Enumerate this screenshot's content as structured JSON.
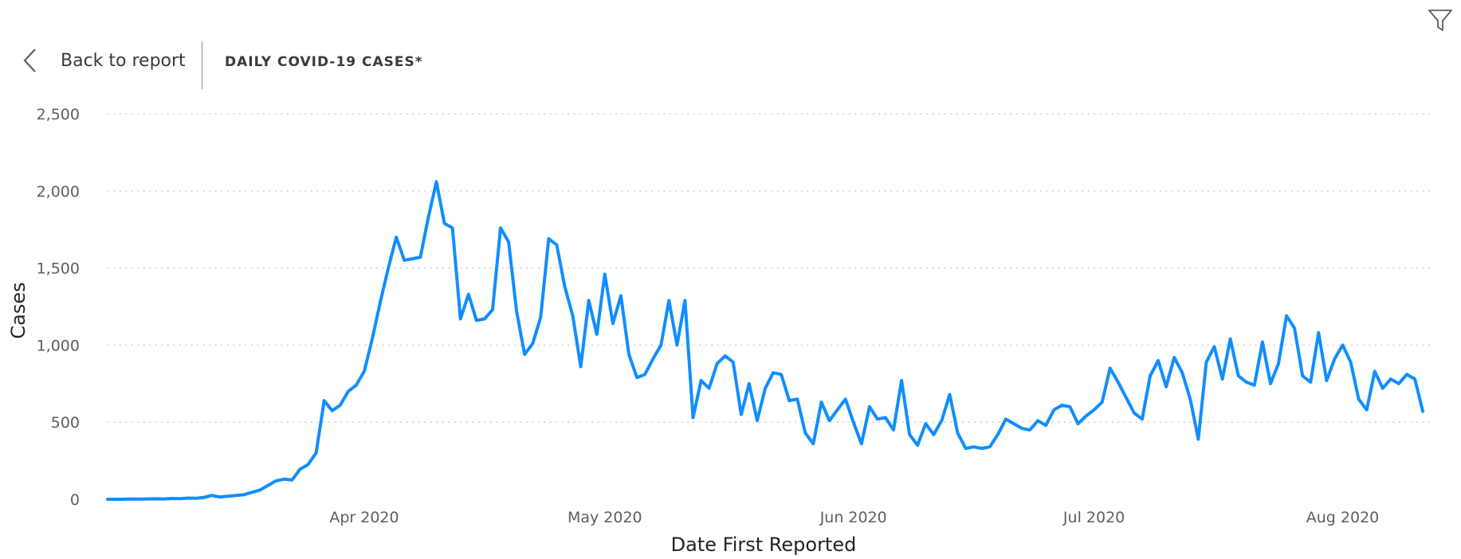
{
  "header": {
    "back_label": "Back to report",
    "title": "DAILY COVID-19 CASES*"
  },
  "icons": {
    "filter": "filter-icon",
    "back": "chevron-left-icon"
  },
  "colors": {
    "line": "#118DFF",
    "grid": "#c8c6c4"
  },
  "chart_data": {
    "type": "line",
    "title": "DAILY COVID-19 CASES*",
    "xlabel": "Date First Reported",
    "ylabel": "Cases",
    "ylim": [
      0,
      2500
    ],
    "yticks": [
      {
        "value": 0,
        "label": "0"
      },
      {
        "value": 500,
        "label": "500"
      },
      {
        "value": 1000,
        "label": "1,000"
      },
      {
        "value": 1500,
        "label": "1,500"
      },
      {
        "value": 2000,
        "label": "2,000"
      },
      {
        "value": 2500,
        "label": "2,500"
      }
    ],
    "xticks": [
      {
        "date": "2020-04-01",
        "label": "Apr 2020"
      },
      {
        "date": "2020-05-01",
        "label": "May 2020"
      },
      {
        "date": "2020-06-01",
        "label": "Jun 2020"
      },
      {
        "date": "2020-07-01",
        "label": "Jul 2020"
      },
      {
        "date": "2020-08-01",
        "label": "Aug 2020"
      }
    ],
    "xlim": [
      "2020-02-29",
      "2020-08-09"
    ],
    "grid": true,
    "series": [
      {
        "points": [
          [
            "2020-02-29",
            0
          ],
          [
            "2020-03-01",
            0
          ],
          [
            "2020-03-02",
            0
          ],
          [
            "2020-03-03",
            2
          ],
          [
            "2020-03-04",
            1
          ],
          [
            "2020-03-05",
            2
          ],
          [
            "2020-03-06",
            3
          ],
          [
            "2020-03-07",
            2
          ],
          [
            "2020-03-08",
            5
          ],
          [
            "2020-03-09",
            4
          ],
          [
            "2020-03-10",
            8
          ],
          [
            "2020-03-11",
            6
          ],
          [
            "2020-03-12",
            12
          ],
          [
            "2020-03-13",
            25
          ],
          [
            "2020-03-14",
            15
          ],
          [
            "2020-03-15",
            20
          ],
          [
            "2020-03-16",
            25
          ],
          [
            "2020-03-17",
            30
          ],
          [
            "2020-03-18",
            45
          ],
          [
            "2020-03-19",
            60
          ],
          [
            "2020-03-20",
            90
          ],
          [
            "2020-03-21",
            120
          ],
          [
            "2020-03-22",
            130
          ],
          [
            "2020-03-23",
            125
          ],
          [
            "2020-03-24",
            195
          ],
          [
            "2020-03-25",
            225
          ],
          [
            "2020-03-26",
            300
          ],
          [
            "2020-03-27",
            640
          ],
          [
            "2020-03-28",
            575
          ],
          [
            "2020-03-29",
            610
          ],
          [
            "2020-03-30",
            700
          ],
          [
            "2020-03-31",
            740
          ],
          [
            "2020-04-01",
            830
          ],
          [
            "2020-04-02",
            1040
          ],
          [
            "2020-04-03",
            1280
          ],
          [
            "2020-04-04",
            1500
          ],
          [
            "2020-04-05",
            1700
          ],
          [
            "2020-04-06",
            1550
          ],
          [
            "2020-04-07",
            1560
          ],
          [
            "2020-04-08",
            1570
          ],
          [
            "2020-04-09",
            1830
          ],
          [
            "2020-04-10",
            2060
          ],
          [
            "2020-04-11",
            1790
          ],
          [
            "2020-04-12",
            1760
          ],
          [
            "2020-04-13",
            1170
          ],
          [
            "2020-04-14",
            1330
          ],
          [
            "2020-04-15",
            1160
          ],
          [
            "2020-04-16",
            1170
          ],
          [
            "2020-04-17",
            1230
          ],
          [
            "2020-04-18",
            1760
          ],
          [
            "2020-04-19",
            1670
          ],
          [
            "2020-04-20",
            1220
          ],
          [
            "2020-04-21",
            940
          ],
          [
            "2020-04-22",
            1010
          ],
          [
            "2020-04-23",
            1180
          ],
          [
            "2020-04-24",
            1690
          ],
          [
            "2020-04-25",
            1650
          ],
          [
            "2020-04-26",
            1380
          ],
          [
            "2020-04-27",
            1190
          ],
          [
            "2020-04-28",
            860
          ],
          [
            "2020-04-29",
            1290
          ],
          [
            "2020-04-30",
            1070
          ],
          [
            "2020-05-01",
            1460
          ],
          [
            "2020-05-02",
            1140
          ],
          [
            "2020-05-03",
            1320
          ],
          [
            "2020-05-04",
            940
          ],
          [
            "2020-05-05",
            790
          ],
          [
            "2020-05-06",
            810
          ],
          [
            "2020-05-07",
            910
          ],
          [
            "2020-05-08",
            1000
          ],
          [
            "2020-05-09",
            1290
          ],
          [
            "2020-05-10",
            1000
          ],
          [
            "2020-05-11",
            1290
          ],
          [
            "2020-05-12",
            530
          ],
          [
            "2020-05-13",
            770
          ],
          [
            "2020-05-14",
            720
          ],
          [
            "2020-05-15",
            880
          ],
          [
            "2020-05-16",
            930
          ],
          [
            "2020-05-17",
            890
          ],
          [
            "2020-05-18",
            550
          ],
          [
            "2020-05-19",
            750
          ],
          [
            "2020-05-20",
            510
          ],
          [
            "2020-05-21",
            720
          ],
          [
            "2020-05-22",
            820
          ],
          [
            "2020-05-23",
            810
          ],
          [
            "2020-05-24",
            640
          ],
          [
            "2020-05-25",
            650
          ],
          [
            "2020-05-26",
            430
          ],
          [
            "2020-05-27",
            360
          ],
          [
            "2020-05-28",
            630
          ],
          [
            "2020-05-29",
            510
          ],
          [
            "2020-05-30",
            580
          ],
          [
            "2020-05-31",
            650
          ],
          [
            "2020-06-01",
            500
          ],
          [
            "2020-06-02",
            360
          ],
          [
            "2020-06-03",
            600
          ],
          [
            "2020-06-04",
            520
          ],
          [
            "2020-06-05",
            530
          ],
          [
            "2020-06-06",
            450
          ],
          [
            "2020-06-07",
            770
          ],
          [
            "2020-06-08",
            420
          ],
          [
            "2020-06-09",
            350
          ],
          [
            "2020-06-10",
            490
          ],
          [
            "2020-06-11",
            420
          ],
          [
            "2020-06-12",
            510
          ],
          [
            "2020-06-13",
            680
          ],
          [
            "2020-06-14",
            430
          ],
          [
            "2020-06-15",
            330
          ],
          [
            "2020-06-16",
            340
          ],
          [
            "2020-06-17",
            330
          ],
          [
            "2020-06-18",
            340
          ],
          [
            "2020-06-19",
            420
          ],
          [
            "2020-06-20",
            520
          ],
          [
            "2020-06-21",
            490
          ],
          [
            "2020-06-22",
            460
          ],
          [
            "2020-06-23",
            450
          ],
          [
            "2020-06-24",
            510
          ],
          [
            "2020-06-25",
            480
          ],
          [
            "2020-06-26",
            580
          ],
          [
            "2020-06-27",
            610
          ],
          [
            "2020-06-28",
            600
          ],
          [
            "2020-06-29",
            490
          ],
          [
            "2020-06-30",
            540
          ],
          [
            "2020-07-01",
            580
          ],
          [
            "2020-07-02",
            630
          ],
          [
            "2020-07-03",
            850
          ],
          [
            "2020-07-04",
            760
          ],
          [
            "2020-07-05",
            660
          ],
          [
            "2020-07-06",
            560
          ],
          [
            "2020-07-07",
            520
          ],
          [
            "2020-07-08",
            800
          ],
          [
            "2020-07-09",
            900
          ],
          [
            "2020-07-10",
            730
          ],
          [
            "2020-07-11",
            920
          ],
          [
            "2020-07-12",
            820
          ],
          [
            "2020-07-13",
            650
          ],
          [
            "2020-07-14",
            390
          ],
          [
            "2020-07-15",
            890
          ],
          [
            "2020-07-16",
            990
          ],
          [
            "2020-07-17",
            780
          ],
          [
            "2020-07-18",
            1040
          ],
          [
            "2020-07-19",
            800
          ],
          [
            "2020-07-20",
            760
          ],
          [
            "2020-07-21",
            740
          ],
          [
            "2020-07-22",
            1020
          ],
          [
            "2020-07-23",
            750
          ],
          [
            "2020-07-24",
            880
          ],
          [
            "2020-07-25",
            1190
          ],
          [
            "2020-07-26",
            1110
          ],
          [
            "2020-07-27",
            800
          ],
          [
            "2020-07-28",
            760
          ],
          [
            "2020-07-29",
            1080
          ],
          [
            "2020-07-30",
            770
          ],
          [
            "2020-07-31",
            910
          ],
          [
            "2020-08-01",
            1000
          ],
          [
            "2020-08-02",
            890
          ],
          [
            "2020-08-03",
            650
          ],
          [
            "2020-08-04",
            580
          ],
          [
            "2020-08-05",
            830
          ],
          [
            "2020-08-06",
            720
          ],
          [
            "2020-08-07",
            780
          ],
          [
            "2020-08-08",
            750
          ],
          [
            "2020-08-09",
            810
          ],
          [
            "2020-08-10",
            780
          ],
          [
            "2020-08-11",
            570
          ]
        ]
      }
    ]
  }
}
